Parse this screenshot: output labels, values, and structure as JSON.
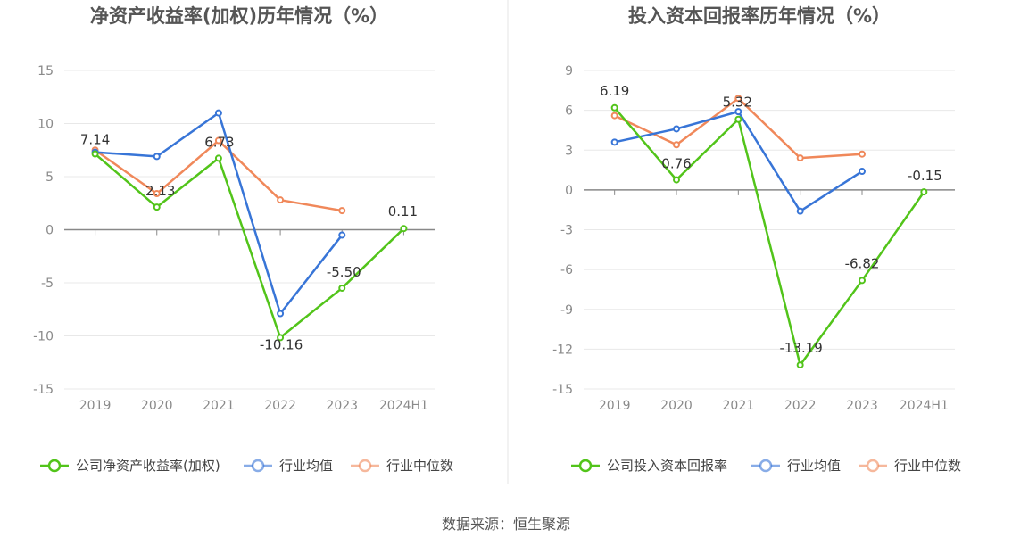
{
  "source_label": "数据来源：恒生聚源",
  "chart_data": [
    {
      "type": "line",
      "title": "净资产收益率(加权)历年情况（%）",
      "categories": [
        "2019",
        "2020",
        "2021",
        "2022",
        "2023",
        "2024H1"
      ],
      "ylim": [
        -15,
        15
      ],
      "yticks": [
        15,
        10,
        5,
        0,
        -5,
        -10,
        -15
      ],
      "legend_position": "bottom",
      "series": [
        {
          "name": "公司净资产收益率(加权)",
          "color": "#52c41a",
          "values": [
            7.14,
            2.13,
            6.73,
            -10.16,
            -5.5,
            0.11
          ],
          "labels": [
            "7.14",
            "2.13",
            "6.73",
            "-10.16",
            "-5.50",
            "0.11"
          ]
        },
        {
          "name": "行业均值",
          "color": "#3875d7",
          "values": [
            7.3,
            6.9,
            11.0,
            -7.9,
            -0.5,
            null
          ]
        },
        {
          "name": "行业中位数",
          "color": "#f0885a",
          "values": [
            7.5,
            3.4,
            8.4,
            2.8,
            1.8,
            null
          ]
        }
      ]
    },
    {
      "type": "line",
      "title": "投入资本回报率历年情况（%）",
      "categories": [
        "2019",
        "2020",
        "2021",
        "2022",
        "2023",
        "2024H1"
      ],
      "ylim": [
        -15,
        9
      ],
      "yticks": [
        9,
        6,
        3,
        0,
        -3,
        -6,
        -9,
        -12,
        -15
      ],
      "legend_position": "bottom",
      "series": [
        {
          "name": "公司投入资本回报率",
          "color": "#52c41a",
          "values": [
            6.19,
            0.76,
            5.32,
            -13.19,
            -6.82,
            -0.15
          ],
          "labels": [
            "6.19",
            "0.76",
            "5.32",
            "-13.19",
            "-6.82",
            "-0.15"
          ]
        },
        {
          "name": "行业均值",
          "color": "#3875d7",
          "values": [
            3.6,
            4.6,
            5.9,
            -1.6,
            1.4,
            null
          ]
        },
        {
          "name": "行业中位数",
          "color": "#f0885a",
          "values": [
            5.6,
            3.4,
            6.9,
            2.4,
            2.7,
            null
          ]
        }
      ]
    }
  ]
}
